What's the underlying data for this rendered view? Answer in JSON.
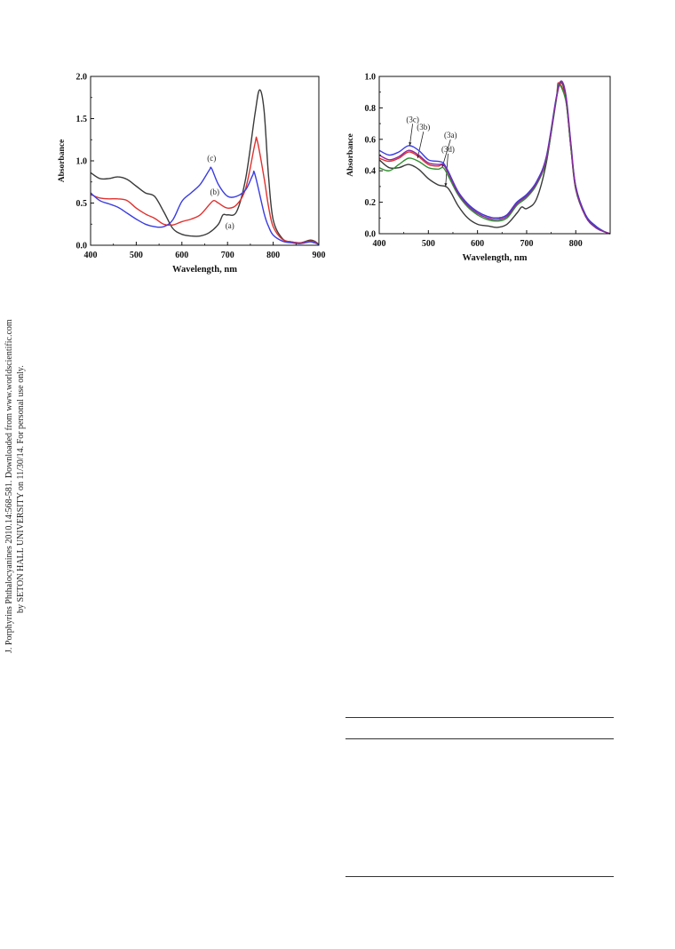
{
  "side_note": {
    "line1": "J. Porphyrins Phthalocyanines 2010.14:568-581. Downloaded from www.worldscientific.com",
    "line2": "by SETON HALL UNIVERSITY on 11/30/14. For personal use only."
  },
  "colors": {
    "black": "#3a3a3a",
    "red": "#e0312f",
    "blue": "#3a3de0",
    "green": "#2f8f2f",
    "purple": "#8a2a9a"
  },
  "chart_data": [
    {
      "type": "line",
      "title": "",
      "xlabel": "Wavelength, nm",
      "ylabel": "Absorbance",
      "xlim": [
        400,
        900
      ],
      "ylim": [
        0,
        2.0
      ],
      "xticks": [
        400,
        500,
        600,
        700,
        800,
        900
      ],
      "yticks": [
        0.0,
        0.5,
        1.0,
        1.5,
        2.0
      ],
      "ytick_labels": [
        "0.0",
        "0.5",
        "1.0",
        "1.5",
        "2.0"
      ],
      "series": [
        {
          "name": "(a)",
          "color": "#3a3a3a",
          "x": [
            400,
            420,
            440,
            460,
            480,
            500,
            520,
            540,
            560,
            580,
            600,
            620,
            640,
            660,
            680,
            690,
            700,
            720,
            740,
            760,
            770,
            780,
            790,
            800,
            820,
            840,
            860,
            880,
            890,
            900
          ],
          "y": [
            0.86,
            0.79,
            0.79,
            0.81,
            0.78,
            0.7,
            0.62,
            0.58,
            0.4,
            0.2,
            0.13,
            0.11,
            0.11,
            0.15,
            0.25,
            0.36,
            0.36,
            0.4,
            0.8,
            1.55,
            1.84,
            1.6,
            0.8,
            0.3,
            0.08,
            0.04,
            0.03,
            0.06,
            0.05,
            0.01
          ],
          "label": "(a)",
          "label_at": [
            705,
            0.2
          ]
        },
        {
          "name": "(b)",
          "color": "#e0312f",
          "x": [
            400,
            420,
            440,
            460,
            480,
            500,
            520,
            540,
            560,
            580,
            600,
            620,
            640,
            660,
            670,
            680,
            700,
            720,
            740,
            760,
            765,
            780,
            790,
            800,
            820,
            840,
            860,
            880,
            890,
            900
          ],
          "y": [
            0.6,
            0.56,
            0.55,
            0.55,
            0.53,
            0.44,
            0.37,
            0.32,
            0.25,
            0.24,
            0.28,
            0.31,
            0.36,
            0.48,
            0.53,
            0.5,
            0.44,
            0.48,
            0.68,
            1.2,
            1.24,
            0.8,
            0.45,
            0.22,
            0.07,
            0.04,
            0.03,
            0.05,
            0.04,
            0.01
          ],
          "label": "(b)",
          "label_at": [
            672,
            0.6
          ]
        },
        {
          "name": "(c)",
          "color": "#3a3de0",
          "x": [
            400,
            420,
            440,
            460,
            480,
            500,
            520,
            540,
            560,
            580,
            600,
            620,
            640,
            660,
            665,
            680,
            700,
            720,
            740,
            755,
            760,
            780,
            790,
            800,
            820,
            840,
            860,
            880,
            890,
            900
          ],
          "y": [
            0.62,
            0.53,
            0.49,
            0.45,
            0.38,
            0.31,
            0.25,
            0.22,
            0.22,
            0.3,
            0.52,
            0.62,
            0.72,
            0.89,
            0.91,
            0.72,
            0.58,
            0.58,
            0.66,
            0.83,
            0.84,
            0.38,
            0.22,
            0.12,
            0.05,
            0.03,
            0.02,
            0.04,
            0.03,
            0.01
          ],
          "label": "(c)",
          "label_at": [
            665,
            1.0
          ]
        }
      ]
    },
    {
      "type": "line",
      "title": "",
      "xlabel": "Wavelength, nm",
      "ylabel": "Absorbance",
      "xlim": [
        400,
        870
      ],
      "ylim": [
        0,
        1.0
      ],
      "xticks": [
        400,
        500,
        600,
        700,
        800
      ],
      "yticks": [
        0.0,
        0.2,
        0.4,
        0.6,
        0.8,
        1.0
      ],
      "ytick_labels": [
        "0.0",
        "0.2",
        "0.4",
        "0.6",
        "0.8",
        "1.0"
      ],
      "series": [
        {
          "name": "(3d)",
          "color": "#3a3a3a",
          "x": [
            400,
            420,
            440,
            460,
            480,
            500,
            520,
            540,
            560,
            580,
            600,
            620,
            640,
            660,
            680,
            690,
            700,
            720,
            740,
            760,
            770,
            780,
            790,
            800,
            820,
            840,
            860,
            870
          ],
          "y": [
            0.47,
            0.42,
            0.42,
            0.44,
            0.41,
            0.35,
            0.31,
            0.29,
            0.18,
            0.1,
            0.06,
            0.05,
            0.04,
            0.06,
            0.13,
            0.17,
            0.16,
            0.22,
            0.45,
            0.85,
            0.96,
            0.85,
            0.55,
            0.3,
            0.12,
            0.05,
            0.01,
            0.0
          ],
          "label": "(3d)",
          "label_at": [
            540,
            0.52
          ],
          "arrow_to": [
            535,
            0.3
          ]
        },
        {
          "name": "(3a)",
          "color": "#e0312f",
          "x": [
            400,
            420,
            440,
            460,
            480,
            500,
            520,
            530,
            540,
            560,
            580,
            600,
            620,
            640,
            660,
            680,
            700,
            720,
            740,
            760,
            765,
            780,
            790,
            800,
            820,
            840,
            860,
            870
          ],
          "y": [
            0.48,
            0.46,
            0.48,
            0.52,
            0.49,
            0.44,
            0.43,
            0.44,
            0.39,
            0.27,
            0.19,
            0.14,
            0.11,
            0.1,
            0.12,
            0.2,
            0.24,
            0.32,
            0.48,
            0.85,
            0.96,
            0.85,
            0.55,
            0.28,
            0.11,
            0.04,
            0.01,
            0.0
          ],
          "label": "(3a)",
          "label_at": [
            545,
            0.61
          ],
          "arrow_to": [
            528,
            0.42
          ]
        },
        {
          "name": "(3b)",
          "color": "#2f8f2f",
          "x": [
            400,
            420,
            440,
            460,
            480,
            500,
            520,
            530,
            540,
            560,
            580,
            600,
            620,
            640,
            660,
            680,
            700,
            720,
            740,
            760,
            765,
            780,
            790,
            800,
            820,
            840,
            860,
            870
          ],
          "y": [
            0.42,
            0.4,
            0.44,
            0.48,
            0.46,
            0.42,
            0.41,
            0.42,
            0.37,
            0.25,
            0.17,
            0.12,
            0.09,
            0.08,
            0.1,
            0.18,
            0.23,
            0.31,
            0.47,
            0.84,
            0.95,
            0.84,
            0.55,
            0.28,
            0.11,
            0.04,
            0.01,
            0.0
          ],
          "label": "(3b)",
          "label_at": [
            490,
            0.66
          ],
          "arrow_to": [
            478,
            0.48
          ]
        },
        {
          "name": "(3c)",
          "color": "#3a3de0",
          "x": [
            400,
            420,
            440,
            460,
            480,
            500,
            520,
            530,
            540,
            560,
            580,
            600,
            620,
            640,
            660,
            680,
            700,
            720,
            740,
            760,
            770,
            780,
            790,
            800,
            820,
            840,
            860,
            870
          ],
          "y": [
            0.53,
            0.5,
            0.52,
            0.56,
            0.53,
            0.47,
            0.46,
            0.45,
            0.4,
            0.27,
            0.19,
            0.14,
            0.11,
            0.1,
            0.12,
            0.2,
            0.25,
            0.33,
            0.49,
            0.86,
            0.97,
            0.88,
            0.58,
            0.3,
            0.12,
            0.05,
            0.01,
            0.0
          ],
          "label": "(3c)",
          "label_at": [
            468,
            0.71
          ],
          "arrow_to": [
            462,
            0.56
          ]
        },
        {
          "name": "",
          "color": "#8a2a9a",
          "x": [
            400,
            420,
            440,
            460,
            480,
            500,
            520,
            530,
            540,
            560,
            580,
            600,
            620,
            640,
            660,
            680,
            700,
            720,
            740,
            760,
            770,
            780,
            790,
            800,
            820,
            840,
            860,
            870
          ],
          "y": [
            0.5,
            0.47,
            0.49,
            0.53,
            0.5,
            0.45,
            0.44,
            0.44,
            0.39,
            0.26,
            0.18,
            0.13,
            0.1,
            0.09,
            0.11,
            0.19,
            0.24,
            0.32,
            0.48,
            0.85,
            0.97,
            0.87,
            0.57,
            0.29,
            0.11,
            0.04,
            0.01,
            0.0
          ],
          "label": "",
          "label_at": null
        }
      ]
    }
  ]
}
